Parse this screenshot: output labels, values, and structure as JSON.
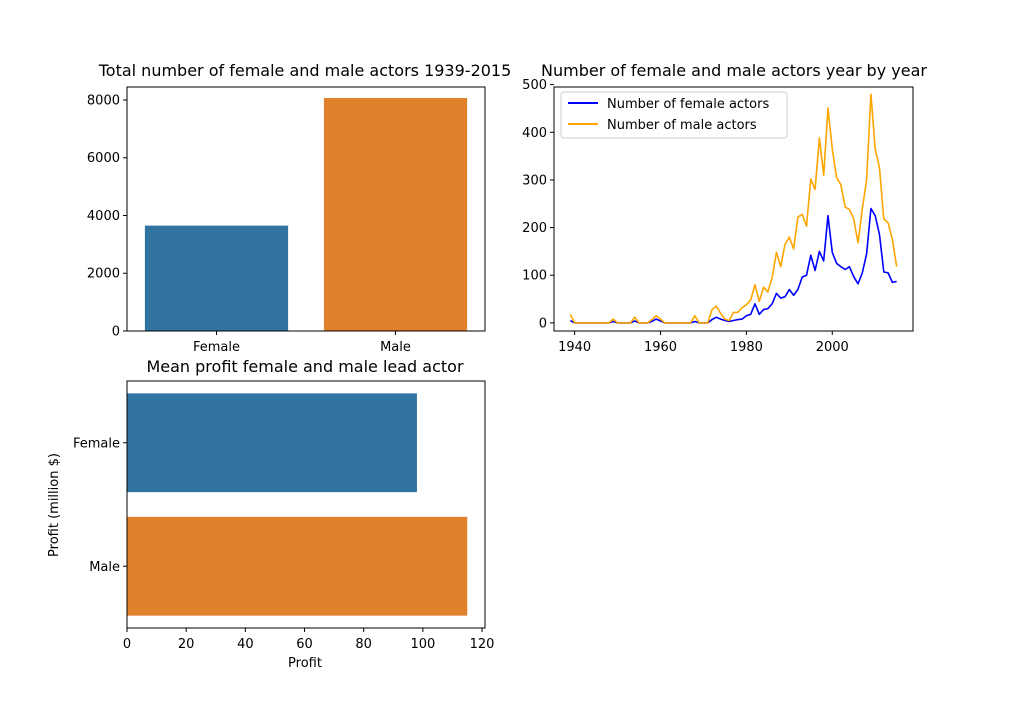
{
  "chart_data": [
    {
      "type": "bar",
      "title": "Total number of female and male actors 1939-2015",
      "categories": [
        "Female",
        "Male"
      ],
      "values": [
        3650,
        8070
      ],
      "colors": [
        "#3274a1",
        "#e1812c"
      ],
      "ylim": [
        0,
        8450
      ],
      "yticks": [
        "0",
        "2000",
        "4000",
        "6000",
        "8000"
      ],
      "xlabel": "",
      "ylabel": "",
      "grid": false
    },
    {
      "type": "line",
      "title": "Number of female and male actors year by year",
      "xlim": [
        1935.2,
        2018.8
      ],
      "ylim": [
        -17,
        495
      ],
      "xticks": [
        "1940",
        "1960",
        "1980",
        "2000"
      ],
      "yticks": [
        "0",
        "100",
        "200",
        "300",
        "400",
        "500"
      ],
      "legend_position": "top-left",
      "grid": false,
      "x": [
        1939,
        1940,
        1941,
        1942,
        1943,
        1944,
        1945,
        1946,
        1947,
        1948,
        1949,
        1950,
        1951,
        1952,
        1953,
        1954,
        1955,
        1956,
        1957,
        1958,
        1959,
        1960,
        1961,
        1962,
        1963,
        1964,
        1965,
        1966,
        1967,
        1968,
        1969,
        1970,
        1971,
        1972,
        1973,
        1974,
        1975,
        1976,
        1977,
        1978,
        1979,
        1980,
        1981,
        1982,
        1983,
        1984,
        1985,
        1986,
        1987,
        1988,
        1989,
        1990,
        1991,
        1992,
        1993,
        1994,
        1995,
        1996,
        1997,
        1998,
        1999,
        2000,
        2001,
        2002,
        2003,
        2004,
        2005,
        2006,
        2007,
        2008,
        2009,
        2010,
        2011,
        2012,
        2013,
        2014,
        2015
      ],
      "series": [
        {
          "name": "Number of female actors",
          "color": "#0000ff",
          "values": [
            5,
            0,
            0,
            0,
            0,
            0,
            0,
            0,
            0,
            0,
            3,
            0,
            0,
            0,
            0,
            4,
            0,
            0,
            0,
            3,
            8,
            4,
            0,
            0,
            0,
            0,
            0,
            0,
            0,
            3,
            0,
            0,
            0,
            7,
            12,
            8,
            5,
            3,
            5,
            7,
            8,
            15,
            18,
            40,
            18,
            28,
            30,
            40,
            62,
            52,
            55,
            70,
            58,
            70,
            96,
            100,
            142,
            110,
            150,
            130,
            225,
            148,
            125,
            118,
            112,
            118,
            97,
            82,
            105,
            145,
            240,
            225,
            185,
            107,
            105,
            85,
            87
          ]
        },
        {
          "name": "Number of male actors",
          "color": "#ffa500",
          "values": [
            18,
            0,
            0,
            0,
            0,
            0,
            0,
            0,
            0,
            0,
            8,
            0,
            0,
            0,
            0,
            12,
            0,
            0,
            0,
            7,
            15,
            8,
            0,
            0,
            0,
            0,
            0,
            0,
            0,
            15,
            0,
            0,
            0,
            28,
            35,
            20,
            8,
            5,
            22,
            22,
            32,
            38,
            48,
            80,
            45,
            75,
            65,
            95,
            148,
            118,
            165,
            180,
            155,
            222,
            228,
            203,
            302,
            280,
            388,
            310,
            451,
            365,
            305,
            290,
            243,
            238,
            218,
            168,
            240,
            300,
            480,
            365,
            325,
            218,
            210,
            175,
            118
          ]
        }
      ]
    },
    {
      "type": "bar",
      "orientation": "horizontal",
      "title": "Mean profit female and male lead actor",
      "categories": [
        "Female",
        "Male"
      ],
      "values": [
        98,
        115
      ],
      "colors": [
        "#3274a1",
        "#e1812c"
      ],
      "xlim": [
        0,
        121
      ],
      "xticks": [
        "0",
        "20",
        "40",
        "60",
        "80",
        "100",
        "120"
      ],
      "xlabel": "Profit",
      "ylabel": "Profit (million $)",
      "grid": false
    }
  ]
}
